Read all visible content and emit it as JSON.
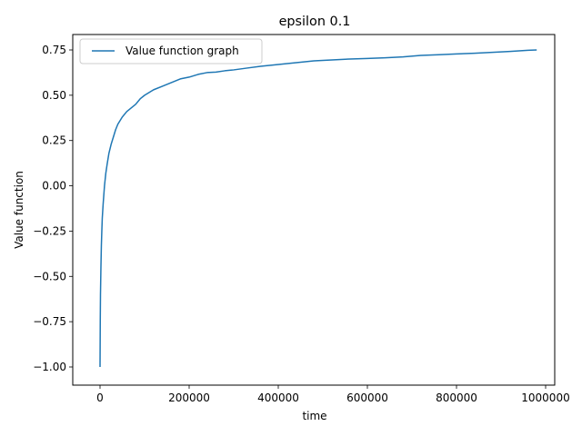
{
  "chart_data": {
    "type": "line",
    "title": "epsilon 0.1",
    "xlabel": "time",
    "ylabel": "Value function",
    "xlim": [
      0,
      1000000
    ],
    "ylim": [
      -1.0,
      0.75
    ],
    "x_ticks": [
      0,
      200000,
      400000,
      600000,
      800000,
      1000000
    ],
    "x_tick_labels": [
      "0",
      "200000",
      "400000",
      "600000",
      "800000",
      "1000000"
    ],
    "y_ticks": [
      -1.0,
      -0.75,
      -0.5,
      -0.25,
      0.0,
      0.25,
      0.5,
      0.75
    ],
    "y_tick_labels": [
      "−1.00",
      "−0.75",
      "−0.50",
      "−0.25",
      "0.00",
      "0.25",
      "0.50",
      "0.75"
    ],
    "grid": false,
    "legend_position": "top-left",
    "colors": {
      "series": "#1f77b4"
    },
    "series": [
      {
        "name": "Value function graph",
        "x": [
          0,
          500,
          1000,
          2000,
          3000,
          4000,
          5000,
          7000,
          10000,
          13000,
          16000,
          20000,
          25000,
          30000,
          35000,
          40000,
          50000,
          60000,
          70000,
          80000,
          90000,
          100000,
          120000,
          140000,
          160000,
          180000,
          200000,
          220000,
          240000,
          260000,
          280000,
          300000,
          330000,
          360000,
          400000,
          440000,
          480000,
          520000,
          560000,
          600000,
          640000,
          680000,
          720000,
          760000,
          800000,
          840000,
          880000,
          920000,
          960000,
          980000
        ],
        "y": [
          -1.0,
          -0.75,
          -0.6,
          -0.45,
          -0.33,
          -0.25,
          -0.18,
          -0.1,
          0.0,
          0.07,
          0.12,
          0.18,
          0.23,
          0.27,
          0.31,
          0.34,
          0.38,
          0.41,
          0.43,
          0.45,
          0.48,
          0.5,
          0.53,
          0.55,
          0.57,
          0.59,
          0.6,
          0.615,
          0.625,
          0.628,
          0.635,
          0.64,
          0.65,
          0.66,
          0.67,
          0.68,
          0.69,
          0.695,
          0.7,
          0.703,
          0.707,
          0.712,
          0.72,
          0.724,
          0.728,
          0.732,
          0.737,
          0.742,
          0.748,
          0.75
        ]
      }
    ]
  }
}
